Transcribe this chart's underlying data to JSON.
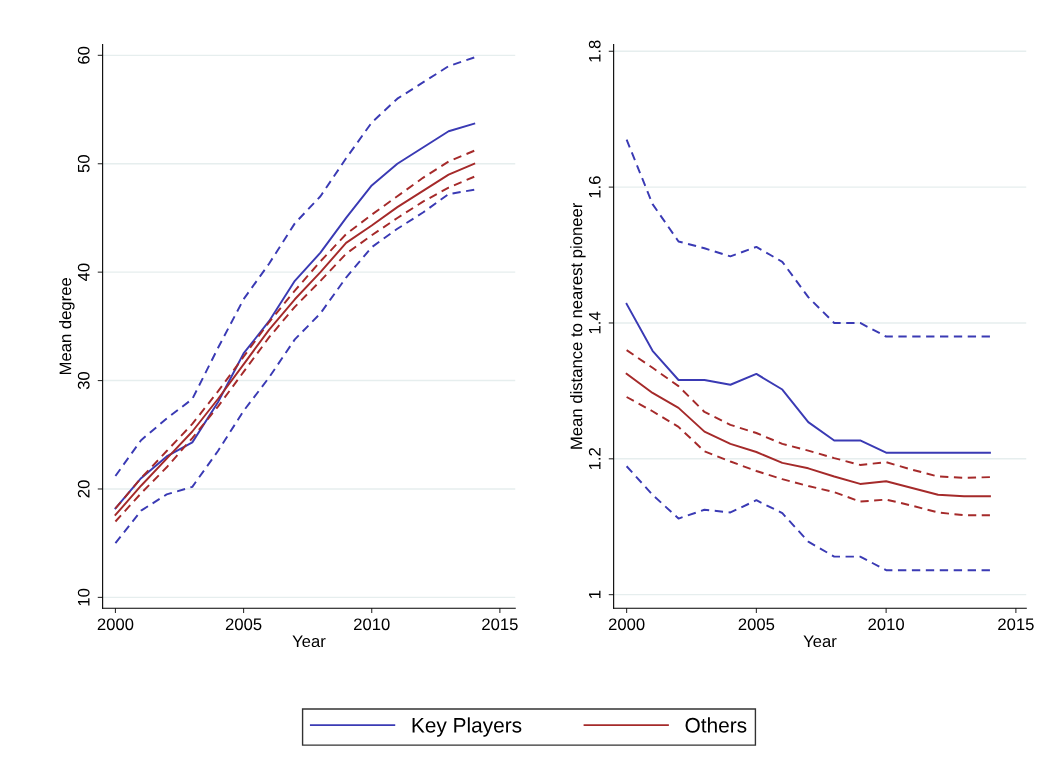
{
  "chart_data": [
    {
      "type": "line",
      "xlabel": "Year",
      "ylabel": "Mean degree",
      "x": [
        2000,
        2001,
        2002,
        2003,
        2004,
        2005,
        2006,
        2007,
        2008,
        2009,
        2010,
        2011,
        2012,
        2013,
        2014
      ],
      "xlim": [
        1999.5,
        2015.6
      ],
      "xticks": [
        2000,
        2005,
        2010,
        2015
      ],
      "ylim": [
        9,
        61
      ],
      "yticks": [
        10,
        20,
        30,
        40,
        50,
        60
      ],
      "grid": "y",
      "legend": "bottom",
      "marker": "none",
      "series": [
        {
          "name": "Key Players",
          "color": "#3a3ab4",
          "line_style": "solid",
          "values": [
            18.2,
            21,
            23,
            24.3,
            28,
            32.5,
            35.5,
            39.2,
            41.8,
            45,
            48,
            50,
            51.5,
            53,
            53.7
          ]
        },
        {
          "color": "#3a3ab4",
          "line_style": "dashed",
          "values": [
            21.2,
            24.5,
            26.5,
            28.3,
            33,
            37.5,
            40.8,
            44.5,
            47,
            50.5,
            53.8,
            56,
            57.5,
            59,
            59.8
          ]
        },
        {
          "color": "#3a3ab4",
          "line_style": "dashed",
          "values": [
            15,
            18,
            19.5,
            20.2,
            23.5,
            27.2,
            30.3,
            33.8,
            36.2,
            39.5,
            42.3,
            44,
            45.5,
            47.2,
            47.6
          ]
        },
        {
          "name": "Others",
          "color": "#a52a2a",
          "line_style": "solid",
          "values": [
            17.6,
            20.3,
            22.8,
            25.3,
            28.3,
            31.5,
            34.7,
            37.5,
            40,
            42.7,
            44.3,
            46,
            47.5,
            49,
            50
          ]
        },
        {
          "color": "#a52a2a",
          "line_style": "dashed",
          "values": [
            18.2,
            21,
            23.5,
            26,
            29,
            32.2,
            35.4,
            38.3,
            41,
            43.5,
            45.3,
            47,
            48.7,
            50.2,
            51.2
          ]
        },
        {
          "color": "#a52a2a",
          "line_style": "dashed",
          "values": [
            17,
            19.6,
            22,
            24.7,
            27.6,
            30.8,
            34,
            36.8,
            39.2,
            41.7,
            43.4,
            45,
            46.5,
            47.8,
            48.8
          ]
        }
      ]
    },
    {
      "type": "line",
      "xlabel": "Year",
      "ylabel": "Mean distance to nearest pioneer",
      "x": [
        2000,
        2001,
        2002,
        2003,
        2004,
        2005,
        2006,
        2007,
        2008,
        2009,
        2010,
        2011,
        2012,
        2013,
        2014
      ],
      "xlim": [
        1999.5,
        2015.4
      ],
      "xticks": [
        2000,
        2005,
        2010,
        2015
      ],
      "ylim": [
        0.98,
        1.81
      ],
      "yticks": [
        {
          "value": 1,
          "label": "1"
        },
        1.2,
        1.4,
        1.6,
        1.8
      ],
      "grid": "y",
      "legend": "bottom",
      "marker": "none",
      "series": [
        {
          "name": "Key Players",
          "color": "#3a3ab4",
          "line_style": "solid",
          "values": [
            1.428,
            1.359,
            1.316,
            1.316,
            1.309,
            1.325,
            1.302,
            1.254,
            1.227,
            1.227,
            1.209,
            1.209,
            1.209,
            1.209,
            1.209
          ]
        },
        {
          "color": "#3a3ab4",
          "line_style": "dashed",
          "values": [
            1.67,
            1.575,
            1.52,
            1.51,
            1.498,
            1.512,
            1.49,
            1.438,
            1.4,
            1.4,
            1.38,
            1.38,
            1.38,
            1.38,
            1.38
          ]
        },
        {
          "color": "#3a3ab4",
          "line_style": "dashed",
          "values": [
            1.189,
            1.147,
            1.112,
            1.125,
            1.121,
            1.139,
            1.12,
            1.078,
            1.056,
            1.056,
            1.036,
            1.036,
            1.036,
            1.036,
            1.036
          ]
        },
        {
          "name": "Others",
          "color": "#a52a2a",
          "line_style": "solid",
          "values": [
            1.325,
            1.297,
            1.275,
            1.24,
            1.222,
            1.21,
            1.194,
            1.186,
            1.174,
            1.163,
            1.167,
            1.157,
            1.147,
            1.145,
            1.145
          ]
        },
        {
          "color": "#a52a2a",
          "line_style": "dashed",
          "values": [
            1.36,
            1.334,
            1.307,
            1.269,
            1.25,
            1.238,
            1.222,
            1.212,
            1.201,
            1.191,
            1.195,
            1.184,
            1.174,
            1.172,
            1.173
          ]
        },
        {
          "color": "#a52a2a",
          "line_style": "dashed",
          "values": [
            1.291,
            1.27,
            1.247,
            1.211,
            1.196,
            1.182,
            1.17,
            1.16,
            1.151,
            1.137,
            1.14,
            1.131,
            1.121,
            1.117,
            1.117
          ]
        }
      ]
    }
  ]
}
